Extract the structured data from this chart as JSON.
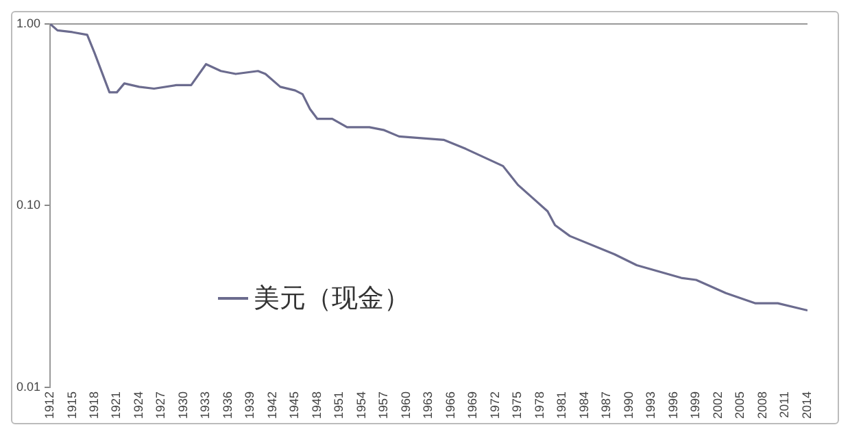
{
  "chart_data": {
    "type": "line",
    "xlim": [
      1912,
      2014
    ],
    "xticks": [
      1912,
      1915,
      1918,
      1921,
      1924,
      1927,
      1930,
      1933,
      1936,
      1939,
      1942,
      1945,
      1948,
      1951,
      1954,
      1957,
      1960,
      1963,
      1966,
      1969,
      1972,
      1975,
      1978,
      1981,
      1984,
      1987,
      1990,
      1993,
      1996,
      1999,
      2002,
      2005,
      2008,
      2011,
      2014
    ],
    "ylim": [
      0.01,
      1
    ],
    "yticks": [
      {
        "value": 0.01,
        "label": "0.01"
      },
      {
        "value": 0.1,
        "label": "0.10"
      },
      {
        "value": 1,
        "label": "1.00"
      }
    ],
    "log": "y",
    "grid": false,
    "legend": "left",
    "marker": "none",
    "line_style": "solid",
    "series": [
      {
        "name": "美元（现金）",
        "color": "#6b6b8e",
        "x": [
          1912,
          1913,
          1915,
          1917,
          1918,
          1920,
          1921,
          1922,
          1923,
          1924,
          1926,
          1929,
          1931,
          1933,
          1935,
          1937,
          1940,
          1941,
          1943,
          1945,
          1946,
          1947,
          1948,
          1950,
          1952,
          1955,
          1957,
          1959,
          1962,
          1965,
          1968,
          1971,
          1973,
          1975,
          1977,
          1979,
          1980,
          1982,
          1988,
          1991,
          1997,
          1999,
          2003,
          2007,
          2010,
          2014
        ],
        "values": [
          1.0,
          0.92,
          0.9,
          0.87,
          0.69,
          0.42,
          0.42,
          0.47,
          0.46,
          0.45,
          0.44,
          0.46,
          0.46,
          0.6,
          0.55,
          0.53,
          0.55,
          0.53,
          0.45,
          0.43,
          0.41,
          0.34,
          0.3,
          0.3,
          0.27,
          0.27,
          0.26,
          0.24,
          0.235,
          0.23,
          0.205,
          0.18,
          0.165,
          0.13,
          0.11,
          0.093,
          0.078,
          0.068,
          0.054,
          0.047,
          0.04,
          0.039,
          0.033,
          0.029,
          0.029,
          0.0265
        ]
      }
    ]
  }
}
